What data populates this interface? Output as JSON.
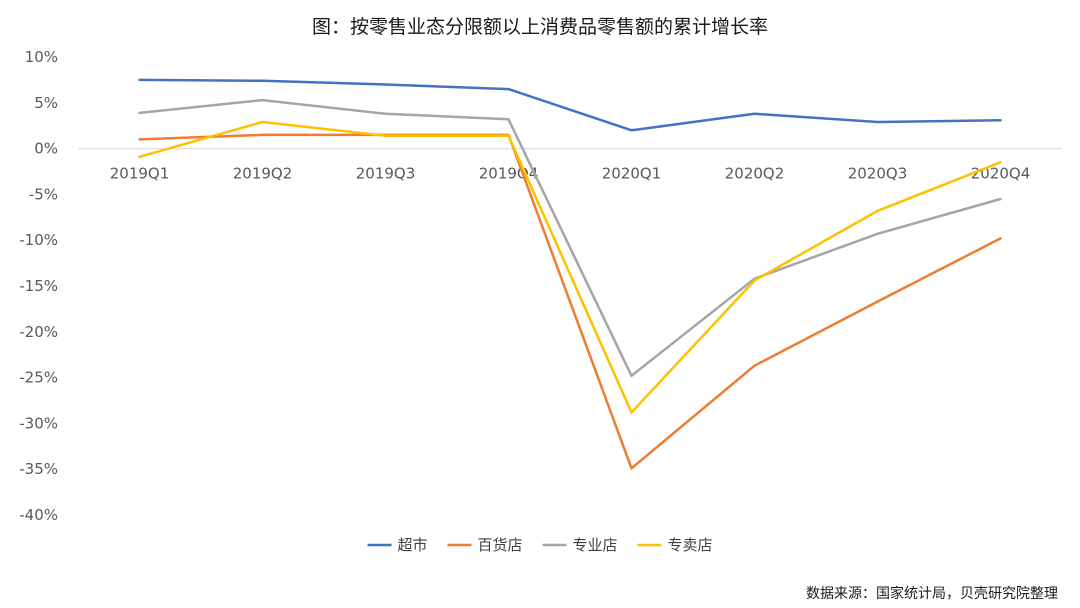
{
  "chart_data": {
    "type": "line",
    "title": "图：按零售业态分限额以上消费品零售额的累计增长率",
    "categories": [
      "2019Q1",
      "2019Q2",
      "2019Q3",
      "2019Q4",
      "2020Q1",
      "2020Q2",
      "2020Q3",
      "2020Q4"
    ],
    "y_ticks": [
      "10%",
      "5%",
      "0%",
      "-5%",
      "-10%",
      "-15%",
      "-20%",
      "-25%",
      "-30%",
      "-35%",
      "-40%"
    ],
    "ylim": [
      -40,
      10
    ],
    "y_unit": "%",
    "grid": "zero line only",
    "legend_position": "bottom",
    "series": [
      {
        "name": "超市",
        "color": "#4472C4",
        "values": [
          7.5,
          7.4,
          7.0,
          6.5,
          2.0,
          3.8,
          2.9,
          3.1
        ]
      },
      {
        "name": "百货店",
        "color": "#ED7D31",
        "values": [
          1.0,
          1.5,
          1.5,
          1.5,
          -34.9,
          -23.7,
          -16.7,
          -9.8
        ]
      },
      {
        "name": "专业店",
        "color": "#A5A5A5",
        "values": [
          3.9,
          5.3,
          3.8,
          3.2,
          -24.8,
          -14.2,
          -9.3,
          -5.5
        ]
      },
      {
        "name": "专卖店",
        "color": "#FFC000",
        "values": [
          -0.9,
          2.9,
          1.4,
          1.4,
          -28.8,
          -14.4,
          -6.8,
          -1.5
        ]
      }
    ],
    "source": "数据来源：国家统计局，贝壳研究院整理"
  }
}
